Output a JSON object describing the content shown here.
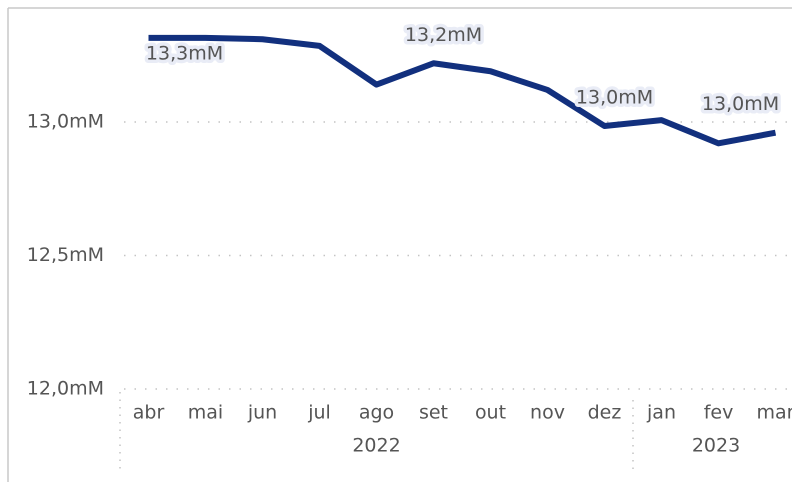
{
  "chart_data": {
    "type": "line",
    "categories": [
      "abr",
      "mai",
      "jun",
      "jul",
      "ago",
      "set",
      "out",
      "nov",
      "dez",
      "jan",
      "fev",
      "mar"
    ],
    "groups": [
      {
        "name": "2022",
        "count": 9
      },
      {
        "name": "2023",
        "count": 3
      }
    ],
    "series": [
      {
        "color": "#12307e",
        "values": [
          13.315,
          13.315,
          13.31,
          13.285,
          13.14,
          13.22,
          13.19,
          13.12,
          12.985,
          13.007,
          12.92,
          12.96
        ],
        "value_labels": [
          "13,3mM",
          null,
          null,
          null,
          null,
          "13,2mM",
          null,
          null,
          "13,0mM",
          null,
          null,
          "13,0mM"
        ]
      }
    ],
    "ylim": [
      12.0,
      13.5
    ],
    "yticks": [
      {
        "value": 12.0,
        "label": "12,0mM"
      },
      {
        "value": 12.5,
        "label": "12,5mM"
      },
      {
        "value": 13.0,
        "label": "13,0mM"
      }
    ],
    "grid": true
  }
}
